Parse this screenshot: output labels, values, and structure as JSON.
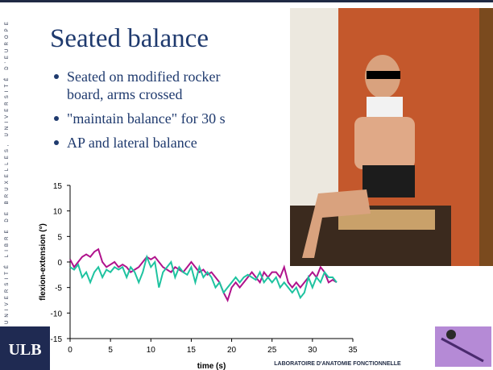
{
  "slide": {
    "title": "Seated balance",
    "bullets": [
      [
        "Seated on modified rocker",
        "board, arms crossed"
      ],
      [
        "\"maintain balance\" for 30 s"
      ],
      [
        "AP and lateral balance"
      ]
    ],
    "side_text": "UNIVERSITÉ LIBRE DE BRUXELLES, UNIVERSITÉ D'EUROPE",
    "logo": "ULB",
    "footer": "LABORATOIRE D'ANATOMIE FONCTIONNELLE"
  },
  "chart_data": {
    "type": "line",
    "xlabel": "time (s)",
    "ylabel": "flexion-extension (°)",
    "x": [
      0,
      0.5,
      1,
      1.5,
      2,
      2.5,
      3,
      3.5,
      4,
      4.5,
      5,
      5.5,
      6,
      6.5,
      7,
      7.5,
      8,
      8.5,
      9,
      9.5,
      10,
      10.5,
      11,
      11.5,
      12,
      12.5,
      13,
      13.5,
      14,
      14.5,
      15,
      15.5,
      16,
      16.5,
      17,
      17.5,
      18,
      18.5,
      19,
      19.5,
      20,
      20.5,
      21,
      21.5,
      22,
      22.5,
      23,
      23.5,
      24,
      24.5,
      25,
      25.5,
      26,
      26.5,
      27,
      27.5,
      28,
      28.5,
      29,
      29.5,
      30,
      30.5,
      31,
      31.5,
      32,
      32.5,
      33
    ],
    "series": [
      {
        "color": "#b0128c",
        "values": [
          0.5,
          -1,
          0,
          1,
          1.5,
          1,
          2,
          2.5,
          0,
          -1,
          -0.5,
          0,
          -1,
          -0.5,
          -1,
          -2,
          -1.5,
          -1,
          0,
          1,
          0.5,
          1,
          0,
          -1,
          -1.5,
          -2,
          -1,
          -1.5,
          -2,
          -1,
          0,
          -1,
          -2,
          -1.5,
          -2.5,
          -2,
          -3,
          -4,
          -6,
          -7.5,
          -5,
          -4,
          -5,
          -4,
          -3,
          -2,
          -3,
          -4,
          -2,
          -3,
          -2,
          -2,
          -3,
          -1,
          -4,
          -5,
          -4,
          -5,
          -4,
          -3,
          -2,
          -3,
          -1,
          -2,
          -4,
          -3.5,
          -4
        ]
      },
      {
        "color": "#1fc3a0",
        "values": [
          -1,
          -1.5,
          -0.5,
          -3,
          -2,
          -4,
          -2,
          -1,
          -3,
          -1.5,
          -2,
          -1,
          -1.5,
          -1,
          -3,
          -1,
          -2,
          -4,
          -2,
          1,
          -1,
          0,
          -5,
          -2,
          -1,
          0,
          -3,
          -1,
          -2,
          -2.5,
          -1,
          -4,
          -1,
          -3,
          -2,
          -3,
          -5,
          -4,
          -6,
          -5,
          -4,
          -3,
          -4,
          -3,
          -2.5,
          -3,
          -3.5,
          -2,
          -4,
          -3,
          -4,
          -3,
          -5,
          -4,
          -5,
          -6,
          -5,
          -7,
          -6,
          -3,
          -5,
          -3,
          -4,
          -2,
          -3,
          -3,
          -4
        ]
      }
    ],
    "xlim": [
      0,
      35
    ],
    "xticks": [
      0,
      5,
      10,
      15,
      20,
      25,
      30,
      35
    ],
    "ylim": [
      -15,
      15
    ],
    "yticks": [
      -15,
      -10,
      -5,
      0,
      5,
      10,
      15
    ]
  }
}
